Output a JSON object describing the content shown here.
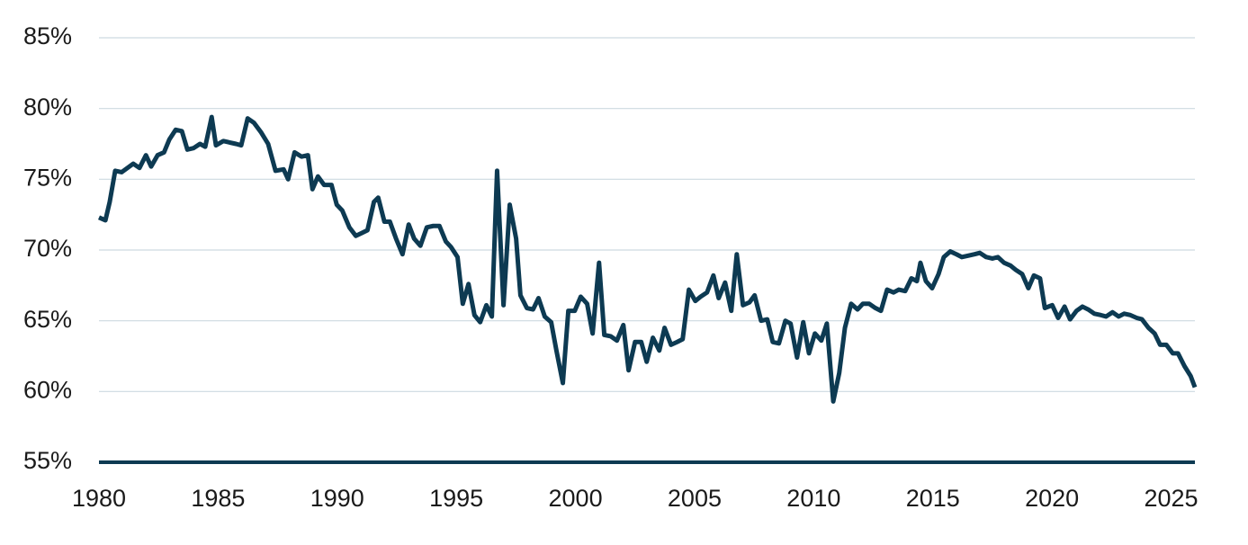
{
  "chart_data": {
    "type": "line",
    "x": [
      1980,
      1980.27,
      1980.45,
      1980.68,
      1980.95,
      1981.44,
      1981.7,
      1981.97,
      1982.19,
      1982.46,
      1982.73,
      1982.95,
      1983.22,
      1983.48,
      1983.71,
      1983.97,
      1984.24,
      1984.46,
      1984.73,
      1984.91,
      1985.22,
      1985.75,
      1985.97,
      1986.24,
      1986.5,
      1986.81,
      1987.1,
      1987.41,
      1987.75,
      1987.94,
      1988.21,
      1988.5,
      1988.77,
      1988.96,
      1989.19,
      1989.45,
      1989.76,
      1989.98,
      1990.21,
      1990.51,
      1990.78,
      1991.03,
      1991.27,
      1991.54,
      1991.72,
      1991.98,
      1992.21,
      1992.47,
      1992.74,
      1993.0,
      1993.23,
      1993.49,
      1993.76,
      1994.03,
      1994.29,
      1994.56,
      1994.78,
      1995.05,
      1995.27,
      1995.51,
      1995.76,
      1996.0,
      1996.26,
      1996.49,
      1996.71,
      1996.98,
      1997.24,
      1997.51,
      1997.69,
      1997.96,
      1998.22,
      1998.45,
      1998.71,
      1998.98,
      1999.2,
      1999.47,
      1999.7,
      1999.97,
      2000.22,
      2000.49,
      2000.72,
      2000.99,
      2001.21,
      2001.48,
      2001.74,
      2002.01,
      2002.23,
      2002.5,
      2002.76,
      2002.99,
      2003.25,
      2003.52,
      2003.74,
      2004.01,
      2004.27,
      2004.5,
      2004.76,
      2005.03,
      2005.25,
      2005.52,
      2005.79,
      2006.01,
      2006.28,
      2006.54,
      2006.77,
      2007.03,
      2007.3,
      2007.52,
      2007.79,
      2008.05,
      2008.28,
      2008.54,
      2008.81,
      2009.03,
      2009.3,
      2009.56,
      2009.8,
      2010.05,
      2010.32,
      2010.55,
      2010.82,
      2011.07,
      2011.31,
      2011.57,
      2011.84,
      2012.06,
      2012.33,
      2012.59,
      2012.82,
      2013.08,
      2013.35,
      2013.57,
      2013.84,
      2014.1,
      2014.33,
      2014.48,
      2014.71,
      2014.97,
      2015.24,
      2015.46,
      2015.73,
      2015.99,
      2016.22,
      2016.48,
      2016.75,
      2016.97,
      2017.24,
      2017.5,
      2017.73,
      2017.99,
      2018.26,
      2018.48,
      2018.75,
      2019.01,
      2019.24,
      2019.5,
      2019.7,
      2020.01,
      2020.26,
      2020.53,
      2020.76,
      2021.03,
      2021.28,
      2021.52,
      2021.78,
      2022.05,
      2022.27,
      2022.54,
      2022.8,
      2023.03,
      2023.29,
      2023.56,
      2023.78,
      2024.05,
      2024.31,
      2024.54,
      2024.8,
      2025.07,
      2025.29,
      2025.56,
      2025.82,
      2026
    ],
    "series": [
      {
        "color": "#0d3a52",
        "values": [
          72.3,
          72.1,
          73.4,
          75.6,
          75.5,
          76.1,
          75.8,
          76.7,
          75.9,
          76.7,
          76.9,
          77.8,
          78.5,
          78.4,
          77.1,
          77.2,
          77.5,
          77.3,
          79.4,
          77.4,
          77.7,
          77.5,
          77.4,
          79.3,
          79.0,
          78.3,
          77.5,
          75.6,
          75.7,
          75.0,
          76.9,
          76.6,
          76.7,
          74.3,
          75.2,
          74.6,
          74.6,
          73.2,
          72.8,
          71.6,
          71.0,
          71.2,
          71.4,
          73.4,
          73.7,
          72.0,
          72.0,
          70.8,
          69.7,
          71.8,
          70.8,
          70.3,
          71.6,
          71.7,
          71.7,
          70.6,
          70.2,
          69.5,
          66.2,
          67.6,
          65.4,
          64.9,
          66.1,
          65.3,
          75.6,
          66.1,
          73.2,
          70.8,
          66.8,
          65.9,
          65.8,
          66.6,
          65.3,
          64.9,
          62.9,
          60.6,
          65.7,
          65.7,
          66.7,
          66.2,
          64.1,
          69.1,
          64.0,
          63.9,
          63.6,
          64.7,
          61.5,
          63.5,
          63.5,
          62.1,
          63.8,
          62.9,
          64.5,
          63.3,
          63.5,
          63.7,
          67.2,
          66.4,
          66.7,
          67.0,
          68.2,
          66.6,
          67.7,
          65.7,
          69.7,
          66.1,
          66.3,
          66.8,
          65.0,
          65.1,
          63.5,
          63.4,
          65.0,
          64.8,
          62.4,
          64.9,
          62.7,
          64.1,
          63.6,
          64.8,
          59.3,
          61.3,
          64.5,
          66.2,
          65.8,
          66.2,
          66.2,
          65.9,
          65.7,
          67.2,
          67.0,
          67.2,
          67.1,
          68.0,
          67.8,
          69.1,
          67.8,
          67.3,
          68.3,
          69.5,
          69.9,
          69.7,
          69.5,
          69.6,
          69.7,
          69.8,
          69.5,
          69.4,
          69.5,
          69.1,
          68.9,
          68.6,
          68.3,
          67.3,
          68.2,
          68.0,
          65.9,
          66.1,
          65.2,
          66.0,
          65.1,
          65.7,
          66.0,
          65.8,
          65.5,
          65.4,
          65.3,
          65.6,
          65.3,
          65.5,
          65.4,
          65.2,
          65.1,
          64.5,
          64.1,
          63.3,
          63.3,
          62.7,
          62.7,
          61.8,
          61.1,
          60.3
        ]
      }
    ],
    "xlim": [
      1980,
      2026
    ],
    "xticks": [
      1980,
      1985,
      1990,
      1995,
      2000,
      2005,
      2010,
      2015,
      2020,
      2025
    ],
    "ylim": [
      55,
      85
    ],
    "yticks": [
      {
        "value": 55,
        "label": "55%"
      },
      {
        "value": 60,
        "label": "60%"
      },
      {
        "value": 65,
        "label": "65%"
      },
      {
        "value": 70,
        "label": "70%"
      },
      {
        "value": 75,
        "label": "75%"
      },
      {
        "value": 80,
        "label": "80%"
      },
      {
        "value": 85,
        "label": "85%"
      }
    ],
    "grid": true
  }
}
